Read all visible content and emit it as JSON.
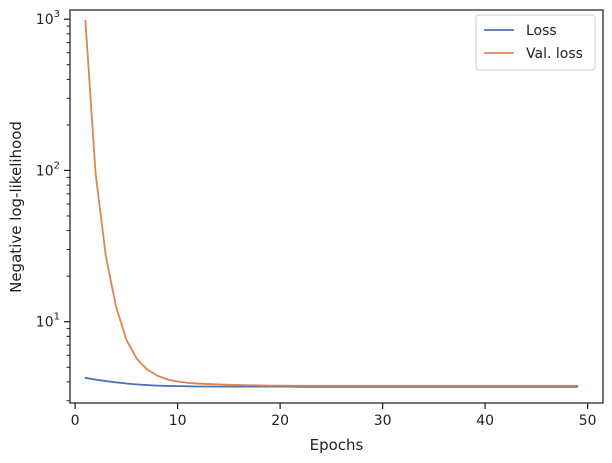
{
  "chart_data": {
    "type": "line",
    "xlabel": "Epochs",
    "ylabel": "Negative log-likelihood",
    "xlim": [
      -0.5,
      51.5
    ],
    "ylim": [
      2.9,
      1150
    ],
    "yscale": "log",
    "xticks": [
      0,
      10,
      20,
      30,
      40,
      50
    ],
    "yticks": [
      {
        "value": 10,
        "base": "10",
        "exp": "1"
      },
      {
        "value": 100,
        "base": "10",
        "exp": "2"
      },
      {
        "value": 1000,
        "base": "10",
        "exp": "3"
      }
    ],
    "grid": false,
    "legend_position": "top-right",
    "x": [
      1,
      2,
      3,
      4,
      5,
      6,
      7,
      8,
      9,
      10,
      11,
      12,
      13,
      14,
      15,
      16,
      17,
      18,
      19,
      20,
      21,
      22,
      23,
      24,
      25,
      26,
      27,
      28,
      29,
      30,
      31,
      32,
      33,
      34,
      35,
      36,
      37,
      38,
      39,
      40,
      41,
      42,
      43,
      44,
      45,
      46,
      47,
      48,
      49
    ],
    "series": [
      {
        "name": "Loss",
        "color": "#4c72b0",
        "values": [
          4.25,
          4.14,
          4.05,
          3.97,
          3.9,
          3.85,
          3.81,
          3.78,
          3.76,
          3.75,
          3.74,
          3.73,
          3.73,
          3.72,
          3.72,
          3.72,
          3.72,
          3.72,
          3.72,
          3.72,
          3.72,
          3.71,
          3.71,
          3.71,
          3.71,
          3.71,
          3.71,
          3.71,
          3.71,
          3.71,
          3.71,
          3.71,
          3.71,
          3.71,
          3.71,
          3.71,
          3.71,
          3.71,
          3.71,
          3.71,
          3.71,
          3.71,
          3.71,
          3.71,
          3.71,
          3.71,
          3.71,
          3.71,
          3.71
        ]
      },
      {
        "name": "Val. loss",
        "color": "#dd8452",
        "values": [
          980,
          95,
          27,
          12.5,
          7.6,
          5.7,
          4.85,
          4.4,
          4.15,
          4.02,
          3.94,
          3.9,
          3.87,
          3.85,
          3.83,
          3.81,
          3.8,
          3.79,
          3.78,
          3.78,
          3.77,
          3.77,
          3.77,
          3.77,
          3.77,
          3.77,
          3.77,
          3.77,
          3.77,
          3.77,
          3.77,
          3.77,
          3.77,
          3.77,
          3.77,
          3.77,
          3.77,
          3.77,
          3.77,
          3.77,
          3.77,
          3.77,
          3.77,
          3.77,
          3.77,
          3.77,
          3.77,
          3.77,
          3.77
        ]
      }
    ]
  }
}
